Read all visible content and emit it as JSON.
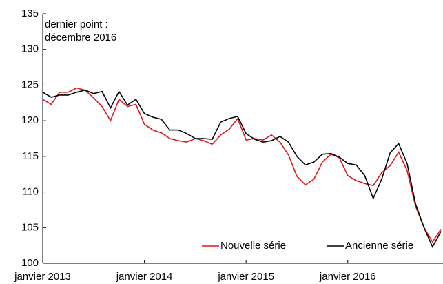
{
  "chart_data": {
    "type": "line",
    "annotation": [
      "dernier point :",
      "décembre 2016"
    ],
    "categories": [
      "janvier 2013",
      null,
      null,
      null,
      null,
      null,
      null,
      null,
      null,
      null,
      null,
      null,
      "janvier 2014",
      null,
      null,
      null,
      null,
      null,
      null,
      null,
      null,
      null,
      null,
      null,
      "janvier 2015",
      null,
      null,
      null,
      null,
      null,
      null,
      null,
      null,
      null,
      null,
      null,
      "janvier 2016",
      null,
      null,
      null,
      null,
      null,
      null,
      null,
      null,
      null,
      null,
      null
    ],
    "series": [
      {
        "name": "Nouvelle série",
        "color": "#e8141b",
        "values": [
          123.0,
          122.3,
          124.0,
          124.0,
          124.6,
          124.3,
          123.2,
          122.0,
          120.0,
          123.0,
          122.0,
          122.3,
          119.5,
          118.7,
          118.3,
          117.5,
          117.2,
          117.0,
          117.5,
          117.2,
          116.7,
          118.0,
          118.8,
          120.3,
          117.3,
          117.5,
          117.3,
          118.0,
          117.0,
          115.2,
          112.2,
          111.0,
          111.8,
          114.2,
          115.3,
          114.8,
          112.3,
          111.6,
          111.2,
          110.9,
          112.7,
          113.7,
          115.6,
          113.0,
          108.0,
          105.0,
          103.0,
          104.8
        ]
      },
      {
        "name": "Ancienne série",
        "color": "#000000",
        "values": [
          124.0,
          123.3,
          123.6,
          123.6,
          124.0,
          124.3,
          123.8,
          124.1,
          121.8,
          124.1,
          122.2,
          123.0,
          121.0,
          120.5,
          120.2,
          118.7,
          118.7,
          118.2,
          117.5,
          117.5,
          117.4,
          119.8,
          120.3,
          120.6,
          118.2,
          117.4,
          117.0,
          117.2,
          117.8,
          117.0,
          115.0,
          113.8,
          114.2,
          115.3,
          115.4,
          114.9,
          114.0,
          113.8,
          112.3,
          109.1,
          111.8,
          115.5,
          116.8,
          114.0,
          108.3,
          105.0,
          102.3,
          104.5
        ]
      }
    ],
    "ylim": [
      100,
      135
    ],
    "yticks": [
      100,
      105,
      110,
      115,
      120,
      125,
      130,
      135
    ],
    "grid": false,
    "legend": "bottom-right"
  }
}
